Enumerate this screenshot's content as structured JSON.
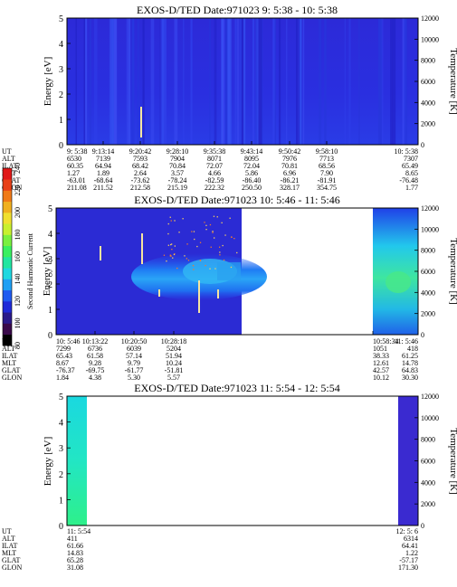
{
  "chart_data": [
    {
      "type": "heatmap",
      "title": "EXOS-D/TED   Date:971023  9: 5:38 - 10: 5:38",
      "ylabel": "Energy [eV]",
      "y2label": "Temperature [K]",
      "ylim": [
        0,
        5
      ],
      "y2lim": [
        0,
        12000
      ],
      "yticks": [
        "0",
        "1",
        "2",
        "3",
        "4",
        "5"
      ],
      "y2ticks": [
        "0",
        "2000",
        "4000",
        "6000",
        "8000",
        "10000",
        "12000"
      ],
      "data_coverage": [
        [
          0,
          1
        ]
      ],
      "row_labels": [
        "UT",
        "ALT",
        "ILAT",
        "MLT",
        "GLAT",
        "GLON"
      ],
      "columns": [
        {
          "ut": "9: 5:38",
          "alt": "6530",
          "ilat": "60.35",
          "mlt": "1.27",
          "glat": "-63.01",
          "glon": "211.08"
        },
        {
          "ut": "9:13:14",
          "alt": "7139",
          "ilat": "64.94",
          "mlt": "1.89",
          "glat": "-68.64",
          "glon": "211.52"
        },
        {
          "ut": "9:20:42",
          "alt": "7593",
          "ilat": "68.42",
          "mlt": "2.64",
          "glat": "-73.62",
          "glon": "212.58"
        },
        {
          "ut": "9:28:10",
          "alt": "7904",
          "ilat": "70.84",
          "mlt": "3.57",
          "glat": "-78.24",
          "glon": "215.19"
        },
        {
          "ut": "9:35:38",
          "alt": "8071",
          "ilat": "72.07",
          "mlt": "4.66",
          "glat": "-82.59",
          "glon": "222.32"
        },
        {
          "ut": "9:43:14",
          "alt": "8095",
          "ilat": "72.04",
          "mlt": "5.86",
          "glat": "-86.40",
          "glon": "250.50"
        },
        {
          "ut": "9:50:42",
          "alt": "7976",
          "ilat": "70.81",
          "mlt": "6.96",
          "glat": "-86.21",
          "glon": "328.17"
        },
        {
          "ut": "9:58:10",
          "alt": "7713",
          "ilat": "68.56",
          "mlt": "7.90",
          "glat": "-81.91",
          "glon": "354.75"
        },
        {
          "ut": "10: 5:38",
          "alt": "7307",
          "ilat": "65.49",
          "mlt": "8.65",
          "glat": "-76.48",
          "glon": "1.77"
        }
      ]
    },
    {
      "type": "heatmap",
      "title": "EXOS-D/TED   Date:971023  10: 5:46 - 11: 5:46",
      "ylabel": "Energy [eV]",
      "y2label": "Temperature [K]",
      "ylim": [
        0,
        5
      ],
      "y2lim": [
        0,
        12000
      ],
      "yticks": [
        "0",
        "1",
        "2",
        "3",
        "4",
        "5"
      ],
      "y2ticks": [
        "0",
        "2000",
        "4000",
        "6000",
        "8000",
        "10000",
        "12000"
      ],
      "data_coverage": [
        [
          0,
          0.5
        ],
        [
          0.87,
          1
        ]
      ],
      "row_labels": [
        "UT",
        "ALT",
        "ILAT",
        "MLT",
        "GLAT",
        "GLON"
      ],
      "columns": [
        {
          "ut": "10: 5:46",
          "alt": "7299",
          "ilat": "65.43",
          "mlt": "8.67",
          "glat": "-76.37",
          "glon": "1.84"
        },
        {
          "ut": "10:13:22",
          "alt": "6736",
          "ilat": "61.58",
          "mlt": "9.28",
          "glat": "-69.75",
          "glon": "4.38"
        },
        {
          "ut": "10:20:50",
          "alt": "6039",
          "ilat": "57.14",
          "mlt": "9.79",
          "glat": "-61.77",
          "glon": "5.30"
        },
        {
          "ut": "10:28:18",
          "alt": "5204",
          "ilat": "51.94",
          "mlt": "10.24",
          "glat": "-51.81",
          "glon": "5.57"
        },
        {
          "ut": "10:58:34",
          "alt": "1051",
          "ilat": "38.33",
          "mlt": "12.61",
          "glat": "42.57",
          "glon": "10.12"
        },
        {
          "ut": "11: 5:46",
          "alt": "418",
          "ilat": "61.25",
          "mlt": "14.78",
          "glat": "64.83",
          "glon": "30.30"
        }
      ]
    },
    {
      "type": "heatmap",
      "title": "EXOS-D/TED   Date:971023  11: 5:54 - 12: 5:54",
      "ylabel": "Energy [eV]",
      "y2label": "Temperature [K]",
      "ylim": [
        0,
        5
      ],
      "y2lim": [
        0,
        12000
      ],
      "yticks": [
        "0",
        "1",
        "2",
        "3",
        "4",
        "5"
      ],
      "y2ticks": [
        "0",
        "2000",
        "4000",
        "6000",
        "8000",
        "10000",
        "12000"
      ],
      "data_coverage": [
        [
          0,
          0.1
        ],
        [
          0.965,
          1
        ]
      ],
      "row_labels": [
        "UT",
        "ALT",
        "ILAT",
        "MLT",
        "GLAT",
        "GLON"
      ],
      "columns": [
        {
          "ut": "11: 5:54",
          "alt": "411",
          "ilat": "61.66",
          "mlt": "14.83",
          "glat": "65.28",
          "glon": "31.08"
        },
        {
          "ut": "12: 5: 6",
          "alt": "6314",
          "ilat": "64.41",
          "mlt": "1.22",
          "glat": "-57.17",
          "glon": "171.30"
        }
      ]
    }
  ],
  "colorbar": {
    "label": "Second Harmonic Current",
    "ticks": [
      "80",
      "100",
      "120",
      "140",
      "160",
      "180",
      "200",
      "220",
      "240"
    ],
    "range": [
      80,
      240
    ]
  }
}
